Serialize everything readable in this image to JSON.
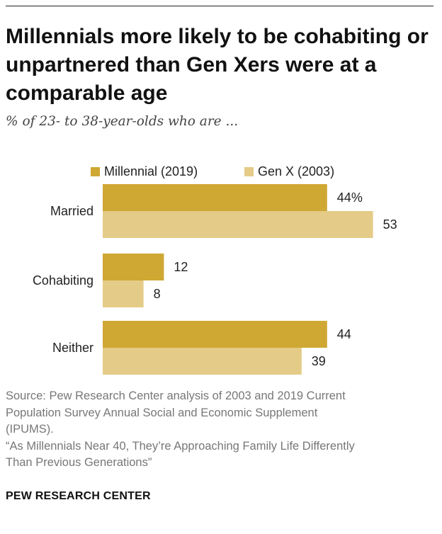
{
  "title": "Millennials more likely to be cohabiting or unpartnered than Gen Xers were at a comparable age",
  "subtitle": "% of 23- to 38-year-olds who are ...",
  "source_lines": [
    "Source: Pew Research Center analysis of 2003 and 2019 Current",
    "Population Survey Annual Social and Economic Supplement",
    "(IPUMS).",
    "“As Millennials Near 40, They’re Approaching Family Life Differently",
    "Than Previous Generations”"
  ],
  "brand": "PEW RESEARCH CENTER",
  "colors": {
    "millennial": "#cfa733",
    "genx": "#e4cb87"
  },
  "chart_data": {
    "type": "bar",
    "orientation": "horizontal",
    "categories": [
      "Married",
      "Cohabiting",
      "Neither"
    ],
    "series": [
      {
        "name": "Millennial (2019)",
        "values": [
          44,
          12,
          44
        ],
        "labels": [
          "44%",
          "12",
          "44"
        ]
      },
      {
        "name": "Gen X (2003)",
        "values": [
          53,
          8,
          39
        ],
        "labels": [
          "53",
          "8",
          "39"
        ]
      }
    ],
    "legend": "top",
    "grid": false
  }
}
